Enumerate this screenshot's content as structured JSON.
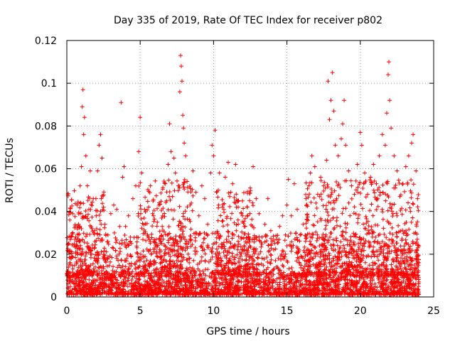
{
  "chart_data": {
    "type": "scatter",
    "title": "Day 335 of 2019, Rate Of TEC Index for receiver p802",
    "xlabel": "GPS time / hours",
    "ylabel": "ROTI / TECUs",
    "xlim": [
      0,
      25
    ],
    "ylim": [
      0,
      0.12
    ],
    "xticks": [
      0,
      5,
      10,
      15,
      20,
      25
    ],
    "xtick_labels": [
      "0",
      "5",
      "10",
      "15",
      "20",
      "25"
    ],
    "yticks": [
      0,
      0.02,
      0.04,
      0.06,
      0.08,
      0.1,
      0.12
    ],
    "ytick_labels": [
      "0",
      "0.02",
      "0.04",
      "0.06",
      "0.08",
      "0.1",
      "0.12"
    ],
    "grid": true,
    "marker": "+",
    "color": "#ff0000",
    "series": [
      {
        "name": "ROTI",
        "points": [
          [
            0.05,
            0.012
          ],
          [
            0.1,
            0.025
          ],
          [
            0.2,
            0.036
          ],
          [
            0.3,
            0.018
          ],
          [
            0.4,
            0.039
          ],
          [
            0.5,
            0.006
          ],
          [
            0.6,
            0.028
          ],
          [
            0.7,
            0.043
          ],
          [
            0.8,
            0.034
          ],
          [
            0.9,
            0.052
          ],
          [
            1.0,
            0.061
          ],
          [
            1.05,
            0.089
          ],
          [
            1.1,
            0.097
          ],
          [
            1.15,
            0.076
          ],
          [
            1.2,
            0.084
          ],
          [
            1.3,
            0.066
          ],
          [
            1.4,
            0.052
          ],
          [
            1.5,
            0.041
          ],
          [
            1.6,
            0.059
          ],
          [
            1.7,
            0.032
          ],
          [
            1.8,
            0.046
          ],
          [
            1.9,
            0.023
          ],
          [
            2.0,
            0.038
          ],
          [
            2.1,
            0.059
          ],
          [
            2.2,
            0.071
          ],
          [
            2.3,
            0.076
          ],
          [
            2.4,
            0.065
          ],
          [
            2.5,
            0.042
          ],
          [
            2.6,
            0.034
          ],
          [
            2.8,
            0.029
          ],
          [
            3.0,
            0.039
          ],
          [
            3.2,
            0.043
          ],
          [
            3.4,
            0.041
          ],
          [
            3.6,
            0.033
          ],
          [
            3.7,
            0.091
          ],
          [
            3.8,
            0.056
          ],
          [
            3.9,
            0.061
          ],
          [
            4.0,
            0.033
          ],
          [
            4.2,
            0.038
          ],
          [
            4.5,
            0.046
          ],
          [
            4.7,
            0.052
          ],
          [
            4.9,
            0.068
          ],
          [
            5.0,
            0.084
          ],
          [
            5.1,
            0.058
          ],
          [
            5.3,
            0.041
          ],
          [
            5.5,
            0.029
          ],
          [
            5.7,
            0.052
          ],
          [
            5.9,
            0.038
          ],
          [
            6.1,
            0.027
          ],
          [
            6.3,
            0.044
          ],
          [
            6.5,
            0.033
          ],
          [
            6.7,
            0.053
          ],
          [
            6.9,
            0.062
          ],
          [
            7.0,
            0.081
          ],
          [
            7.1,
            0.068
          ],
          [
            7.2,
            0.047
          ],
          [
            7.3,
            0.065
          ],
          [
            7.4,
            0.058
          ],
          [
            7.6,
            0.052
          ],
          [
            7.7,
            0.096
          ],
          [
            7.75,
            0.113
          ],
          [
            7.8,
            0.108
          ],
          [
            7.85,
            0.101
          ],
          [
            7.9,
            0.085
          ],
          [
            7.95,
            0.079
          ],
          [
            8.0,
            0.072
          ],
          [
            8.1,
            0.066
          ],
          [
            8.2,
            0.054
          ],
          [
            8.4,
            0.043
          ],
          [
            8.6,
            0.059
          ],
          [
            8.8,
            0.049
          ],
          [
            9.0,
            0.038
          ],
          [
            9.2,
            0.052
          ],
          [
            9.4,
            0.046
          ],
          [
            9.6,
            0.034
          ],
          [
            9.8,
            0.058
          ],
          [
            9.9,
            0.071
          ],
          [
            10.0,
            0.066
          ],
          [
            10.1,
            0.078
          ],
          [
            10.2,
            0.049
          ],
          [
            10.4,
            0.058
          ],
          [
            10.6,
            0.042
          ],
          [
            10.8,
            0.056
          ],
          [
            11.0,
            0.063
          ],
          [
            11.1,
            0.047
          ],
          [
            11.3,
            0.053
          ],
          [
            11.5,
            0.062
          ],
          [
            11.7,
            0.045
          ],
          [
            11.9,
            0.039
          ],
          [
            12.1,
            0.033
          ],
          [
            12.3,
            0.042
          ],
          [
            12.5,
            0.051
          ],
          [
            12.7,
            0.061
          ],
          [
            12.9,
            0.046
          ],
          [
            13.1,
            0.039
          ],
          [
            13.3,
            0.028
          ],
          [
            13.5,
            0.034
          ],
          [
            13.7,
            0.046
          ],
          [
            13.9,
            0.031
          ],
          [
            14.1,
            0.022
          ],
          [
            14.3,
            0.027
          ],
          [
            14.5,
            0.033
          ],
          [
            14.7,
            0.038
          ],
          [
            14.9,
            0.029
          ],
          [
            15.0,
            0.043
          ],
          [
            15.1,
            0.055
          ],
          [
            15.3,
            0.038
          ],
          [
            15.5,
            0.053
          ],
          [
            15.7,
            0.041
          ],
          [
            15.9,
            0.029
          ],
          [
            16.1,
            0.034
          ],
          [
            16.3,
            0.046
          ],
          [
            16.5,
            0.052
          ],
          [
            16.6,
            0.058
          ],
          [
            16.7,
            0.066
          ],
          [
            16.9,
            0.061
          ],
          [
            17.1,
            0.048
          ],
          [
            17.3,
            0.056
          ],
          [
            17.5,
            0.052
          ],
          [
            17.7,
            0.064
          ],
          [
            17.8,
            0.101
          ],
          [
            17.9,
            0.083
          ],
          [
            18.0,
            0.092
          ],
          [
            18.1,
            0.105
          ],
          [
            18.2,
            0.087
          ],
          [
            18.3,
            0.071
          ],
          [
            18.5,
            0.066
          ],
          [
            18.7,
            0.074
          ],
          [
            18.8,
            0.081
          ],
          [
            18.9,
            0.092
          ],
          [
            19.0,
            0.071
          ],
          [
            19.2,
            0.059
          ],
          [
            19.4,
            0.052
          ],
          [
            19.6,
            0.048
          ],
          [
            19.8,
            0.062
          ],
          [
            20.0,
            0.077
          ],
          [
            20.1,
            0.071
          ],
          [
            20.3,
            0.058
          ],
          [
            20.5,
            0.048
          ],
          [
            20.7,
            0.056
          ],
          [
            20.9,
            0.062
          ],
          [
            21.1,
            0.053
          ],
          [
            21.3,
            0.066
          ],
          [
            21.5,
            0.076
          ],
          [
            21.7,
            0.071
          ],
          [
            21.8,
            0.086
          ],
          [
            21.9,
            0.104
          ],
          [
            21.95,
            0.11
          ],
          [
            22.0,
            0.092
          ],
          [
            22.1,
            0.079
          ],
          [
            22.3,
            0.066
          ],
          [
            22.5,
            0.059
          ],
          [
            22.7,
            0.047
          ],
          [
            22.9,
            0.053
          ],
          [
            23.1,
            0.061
          ],
          [
            23.3,
            0.066
          ],
          [
            23.5,
            0.072
          ],
          [
            23.6,
            0.076
          ],
          [
            23.8,
            0.059
          ],
          [
            23.9,
            0.046
          ],
          [
            0.5,
            0.004
          ],
          [
            1.5,
            0.005
          ],
          [
            2.5,
            0.006
          ],
          [
            3.5,
            0.004
          ],
          [
            4.5,
            0.005
          ],
          [
            5.5,
            0.006
          ],
          [
            6.5,
            0.005
          ],
          [
            7.5,
            0.004
          ],
          [
            8.5,
            0.005
          ],
          [
            9.5,
            0.004
          ],
          [
            10.5,
            0.006
          ],
          [
            11.5,
            0.005
          ],
          [
            12.5,
            0.007
          ],
          [
            13.5,
            0.004
          ],
          [
            14.5,
            0.005
          ],
          [
            15.5,
            0.006
          ],
          [
            16.5,
            0.007
          ],
          [
            17.5,
            0.006
          ],
          [
            18.5,
            0.005
          ],
          [
            19.5,
            0.006
          ],
          [
            20.5,
            0.005
          ],
          [
            21.5,
            0.004
          ],
          [
            22.5,
            0.005
          ],
          [
            23.5,
            0.004
          ],
          [
            0.8,
            0.009
          ],
          [
            3.2,
            0.011
          ],
          [
            6.8,
            0.012
          ],
          [
            9.1,
            0.008
          ],
          [
            12.8,
            0.013
          ],
          [
            15.6,
            0.009
          ],
          [
            18.7,
            0.014
          ],
          [
            21.2,
            0.011
          ],
          [
            23.2,
            0.008
          ]
        ],
        "density_bands": [
          {
            "from": 0.0,
            "to": 24.0,
            "low": 0.001,
            "high": 0.03,
            "count": 1800
          },
          {
            "from": 0.0,
            "to": 24.0,
            "low": 0.001,
            "high": 0.012,
            "count": 1400
          },
          {
            "from": 0.0,
            "to": 2.6,
            "low": 0.01,
            "high": 0.05,
            "count": 200
          },
          {
            "from": 4.8,
            "to": 8.6,
            "low": 0.01,
            "high": 0.055,
            "count": 260
          },
          {
            "from": 10.2,
            "to": 12.8,
            "low": 0.01,
            "high": 0.05,
            "count": 200
          },
          {
            "from": 16.2,
            "to": 24.0,
            "low": 0.01,
            "high": 0.055,
            "count": 600
          }
        ]
      }
    ]
  }
}
